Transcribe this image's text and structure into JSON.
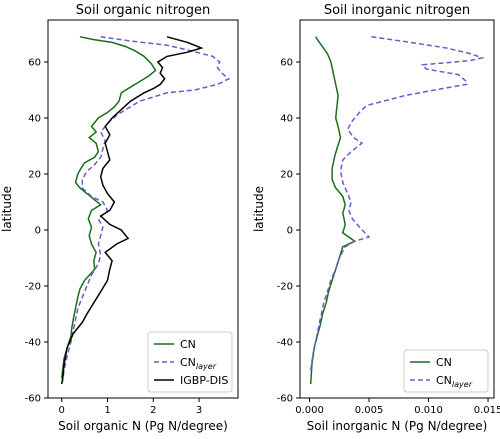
{
  "chart_data": [
    {
      "type": "line",
      "title": "Soil organic nitrogen",
      "xlabel": "Soil organic N (Pg N/degree)",
      "ylabel": "latitude",
      "xlim": [
        -0.3,
        3.85
      ],
      "ylim": [
        -60,
        75
      ],
      "xticks": [
        0,
        1,
        2,
        3
      ],
      "yticks": [
        -60,
        -40,
        -20,
        0,
        20,
        40,
        60
      ],
      "grid": false,
      "legend_position": "lower-right",
      "series": [
        {
          "name": "CN",
          "legend_main": "CN",
          "legend_sub": "",
          "color": "#1a6e1a",
          "dash": "solid",
          "points": [
            [
              0.4,
              69
            ],
            [
              0.7,
              68
            ],
            [
              1.1,
              67
            ],
            [
              1.4,
              65.5
            ],
            [
              1.6,
              64
            ],
            [
              1.8,
              62
            ],
            [
              1.95,
              59.5
            ],
            [
              2.05,
              57
            ],
            [
              1.9,
              55
            ],
            [
              1.7,
              53
            ],
            [
              1.5,
              51
            ],
            [
              1.3,
              49
            ],
            [
              1.25,
              46
            ],
            [
              1.15,
              44
            ],
            [
              1.0,
              42
            ],
            [
              0.8,
              40
            ],
            [
              0.65,
              37
            ],
            [
              0.75,
              35
            ],
            [
              0.6,
              33
            ],
            [
              0.75,
              31
            ],
            [
              0.8,
              28
            ],
            [
              0.72,
              26
            ],
            [
              0.5,
              24
            ],
            [
              0.42,
              22
            ],
            [
              0.35,
              20
            ],
            [
              0.3,
              17
            ],
            [
              0.4,
              15
            ],
            [
              0.55,
              13
            ],
            [
              0.7,
              11
            ],
            [
              0.85,
              9
            ],
            [
              0.65,
              7
            ],
            [
              0.58,
              4
            ],
            [
              0.65,
              1
            ],
            [
              0.6,
              -2
            ],
            [
              0.65,
              -5
            ],
            [
              0.75,
              -8
            ],
            [
              0.7,
              -11
            ],
            [
              0.72,
              -14
            ],
            [
              0.5,
              -18
            ],
            [
              0.4,
              -21
            ],
            [
              0.35,
              -24
            ],
            [
              0.3,
              -28
            ],
            [
              0.25,
              -32
            ],
            [
              0.22,
              -35
            ],
            [
              0.2,
              -38
            ],
            [
              0.12,
              -42
            ],
            [
              0.05,
              -46
            ],
            [
              0.02,
              -50
            ],
            [
              0.0,
              -53
            ]
          ]
        },
        {
          "name": "CN layer",
          "legend_main": "CN",
          "legend_sub": "layer",
          "color": "#6a5acd",
          "dash": "dashed",
          "points": [
            [
              0.85,
              69
            ],
            [
              1.5,
              67.5
            ],
            [
              2.3,
              66
            ],
            [
              2.7,
              64.5
            ],
            [
              3.3,
              62
            ],
            [
              3.45,
              60
            ],
            [
              3.4,
              58
            ],
            [
              3.5,
              56
            ],
            [
              3.65,
              54
            ],
            [
              3.4,
              52
            ],
            [
              2.9,
              50
            ],
            [
              2.3,
              49
            ],
            [
              2.0,
              47.5
            ],
            [
              1.7,
              46
            ],
            [
              1.4,
              43
            ],
            [
              1.2,
              41
            ],
            [
              1.0,
              38
            ],
            [
              0.85,
              35
            ],
            [
              0.95,
              32
            ],
            [
              0.9,
              29
            ],
            [
              0.85,
              26
            ],
            [
              0.7,
              23
            ],
            [
              0.55,
              21
            ],
            [
              0.45,
              18
            ],
            [
              0.45,
              15
            ],
            [
              0.65,
              12
            ],
            [
              0.9,
              10
            ],
            [
              1.0,
              7
            ],
            [
              0.8,
              4
            ],
            [
              0.9,
              1
            ],
            [
              0.85,
              -2
            ],
            [
              0.8,
              -5
            ],
            [
              0.85,
              -9
            ],
            [
              0.8,
              -12
            ],
            [
              0.65,
              -16
            ],
            [
              0.55,
              -20
            ],
            [
              0.45,
              -24
            ],
            [
              0.35,
              -28
            ],
            [
              0.3,
              -32
            ],
            [
              0.25,
              -36
            ],
            [
              0.2,
              -40
            ],
            [
              0.12,
              -45
            ],
            [
              0.05,
              -50
            ],
            [
              0.02,
              -54
            ]
          ]
        },
        {
          "name": "IGBP-DIS",
          "legend_main": "IGBP-DIS",
          "legend_sub": "",
          "color": "#000000",
          "dash": "solid",
          "points": [
            [
              2.3,
              69
            ],
            [
              2.75,
              67
            ],
            [
              3.05,
              65
            ],
            [
              2.75,
              63.5
            ],
            [
              2.3,
              62
            ],
            [
              2.1,
              60
            ],
            [
              2.2,
              58
            ],
            [
              2.15,
              56
            ],
            [
              2.25,
              54
            ],
            [
              2.15,
              52
            ],
            [
              2.0,
              50.5
            ],
            [
              1.8,
              49
            ],
            [
              1.5,
              46
            ],
            [
              1.3,
              43
            ],
            [
              1.1,
              40
            ],
            [
              0.95,
              37
            ],
            [
              1.05,
              34
            ],
            [
              0.95,
              31
            ],
            [
              1.0,
              28
            ],
            [
              1.05,
              25
            ],
            [
              0.9,
              22
            ],
            [
              0.85,
              19
            ],
            [
              0.9,
              16
            ],
            [
              1.0,
              13
            ],
            [
              1.15,
              10
            ],
            [
              1.05,
              7
            ],
            [
              0.85,
              5
            ],
            [
              1.05,
              2
            ],
            [
              1.3,
              0
            ],
            [
              1.45,
              -3
            ],
            [
              1.2,
              -5
            ],
            [
              0.95,
              -8
            ],
            [
              1.1,
              -11
            ],
            [
              1.05,
              -14
            ],
            [
              1.0,
              -18
            ],
            [
              0.85,
              -22
            ],
            [
              0.7,
              -26
            ],
            [
              0.55,
              -30
            ],
            [
              0.45,
              -33
            ],
            [
              0.25,
              -37
            ],
            [
              0.12,
              -42
            ],
            [
              0.05,
              -48
            ],
            [
              0.02,
              -53
            ],
            [
              0.0,
              -55
            ]
          ]
        }
      ]
    },
    {
      "type": "line",
      "title": "Soil inorganic nitrogen",
      "xlabel": "Soil inorganic N (Pg N/degree)",
      "ylabel": "latitude",
      "xlim": [
        -0.0008,
        0.0155
      ],
      "ylim": [
        -60,
        75
      ],
      "xticks": [
        0.0,
        0.005,
        0.01,
        0.015
      ],
      "xtick_labels": [
        "0.000",
        "0.005",
        "0.010",
        "0.015"
      ],
      "yticks": [
        -60,
        -40,
        -20,
        0,
        20,
        40,
        60
      ],
      "grid": false,
      "legend_position": "lower-right",
      "series": [
        {
          "name": "CN",
          "legend_main": "CN",
          "legend_sub": "",
          "color": "#1a6e1a",
          "dash": "solid",
          "points": [
            [
              0.0005,
              69
            ],
            [
              0.001,
              66
            ],
            [
              0.0015,
              63
            ],
            [
              0.0018,
              60
            ],
            [
              0.002,
              56
            ],
            [
              0.0022,
              52
            ],
            [
              0.0024,
              48
            ],
            [
              0.0023,
              44
            ],
            [
              0.0022,
              40
            ],
            [
              0.0024,
              37
            ],
            [
              0.0026,
              33
            ],
            [
              0.0023,
              29
            ],
            [
              0.0021,
              26
            ],
            [
              0.0019,
              22
            ],
            [
              0.0019,
              18
            ],
            [
              0.0022,
              15
            ],
            [
              0.0028,
              12
            ],
            [
              0.003,
              9
            ],
            [
              0.0028,
              6
            ],
            [
              0.003,
              2
            ],
            [
              0.0028,
              -1
            ],
            [
              0.0038,
              -4
            ],
            [
              0.0028,
              -6
            ],
            [
              0.0025,
              -10
            ],
            [
              0.0022,
              -14
            ],
            [
              0.0019,
              -18
            ],
            [
              0.0016,
              -22
            ],
            [
              0.0014,
              -26
            ],
            [
              0.0011,
              -30
            ],
            [
              0.0009,
              -34
            ],
            [
              0.0007,
              -37
            ],
            [
              0.0004,
              -42
            ],
            [
              0.0002,
              -48
            ],
            [
              0.0001,
              -55
            ]
          ]
        },
        {
          "name": "CN layer",
          "legend_main": "CN",
          "legend_sub": "layer",
          "color": "#6a5acd",
          "dash": "dashed",
          "points": [
            [
              0.0052,
              69
            ],
            [
              0.0085,
              67
            ],
            [
              0.0115,
              65
            ],
            [
              0.0135,
              63
            ],
            [
              0.0145,
              61.5
            ],
            [
              0.0135,
              60.5
            ],
            [
              0.0095,
              59
            ],
            [
              0.0098,
              57.5
            ],
            [
              0.0125,
              55.5
            ],
            [
              0.0132,
              53
            ],
            [
              0.0132,
              52
            ],
            [
              0.0105,
              50
            ],
            [
              0.008,
              48
            ],
            [
              0.0062,
              46
            ],
            [
              0.0048,
              44.5
            ],
            [
              0.0042,
              42
            ],
            [
              0.0036,
              39
            ],
            [
              0.0032,
              36
            ],
            [
              0.0037,
              33
            ],
            [
              0.0044,
              31
            ],
            [
              0.0035,
              28
            ],
            [
              0.0028,
              25
            ],
            [
              0.0026,
              21
            ],
            [
              0.0028,
              17
            ],
            [
              0.0032,
              13
            ],
            [
              0.0035,
              10
            ],
            [
              0.0033,
              7
            ],
            [
              0.0036,
              4
            ],
            [
              0.0042,
              1
            ],
            [
              0.005,
              -2.5
            ],
            [
              0.0038,
              -4
            ],
            [
              0.003,
              -6
            ],
            [
              0.0025,
              -10
            ],
            [
              0.0022,
              -14
            ],
            [
              0.0018,
              -18
            ],
            [
              0.0015,
              -22
            ],
            [
              0.0012,
              -26
            ],
            [
              0.001,
              -30
            ],
            [
              0.0008,
              -34
            ],
            [
              0.0006,
              -38
            ],
            [
              0.0003,
              -44
            ],
            [
              0.0001,
              -50
            ]
          ]
        }
      ]
    }
  ]
}
